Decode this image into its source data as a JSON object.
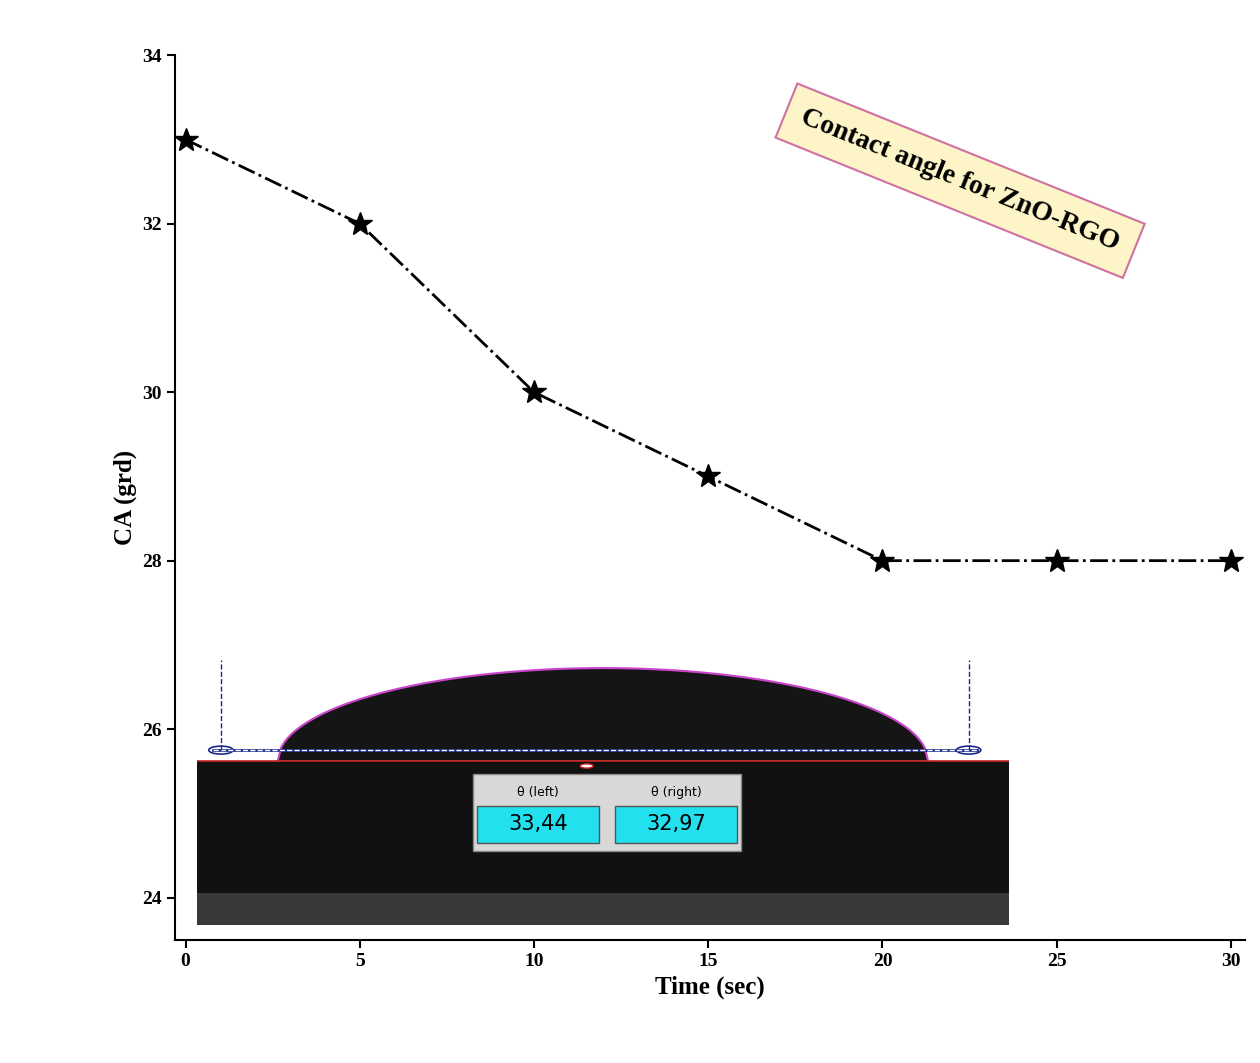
{
  "chart_data": {
    "type": "line",
    "title": "Contact angle for ZnO-RGO",
    "x_label": "Time (sec)",
    "y_label": "CA (grd)",
    "x": [
      0,
      5,
      10,
      15,
      20,
      25,
      30
    ],
    "values": [
      33,
      32,
      30,
      29,
      28,
      28,
      28
    ],
    "color": "#000000",
    "marker": "star",
    "line_style": "dashdot",
    "xlim": [
      -0.3,
      30.4
    ],
    "xticks": [
      0,
      5,
      10,
      15,
      20,
      25,
      30
    ],
    "ylim": [
      23.5,
      34
    ],
    "yticks": [
      24,
      26,
      28,
      30,
      32,
      34
    ],
    "grid": false,
    "annotations": [
      {
        "label": "θ (left)",
        "text": "33,44"
      },
      {
        "label": "θ (right)",
        "text": "32,97"
      }
    ]
  }
}
